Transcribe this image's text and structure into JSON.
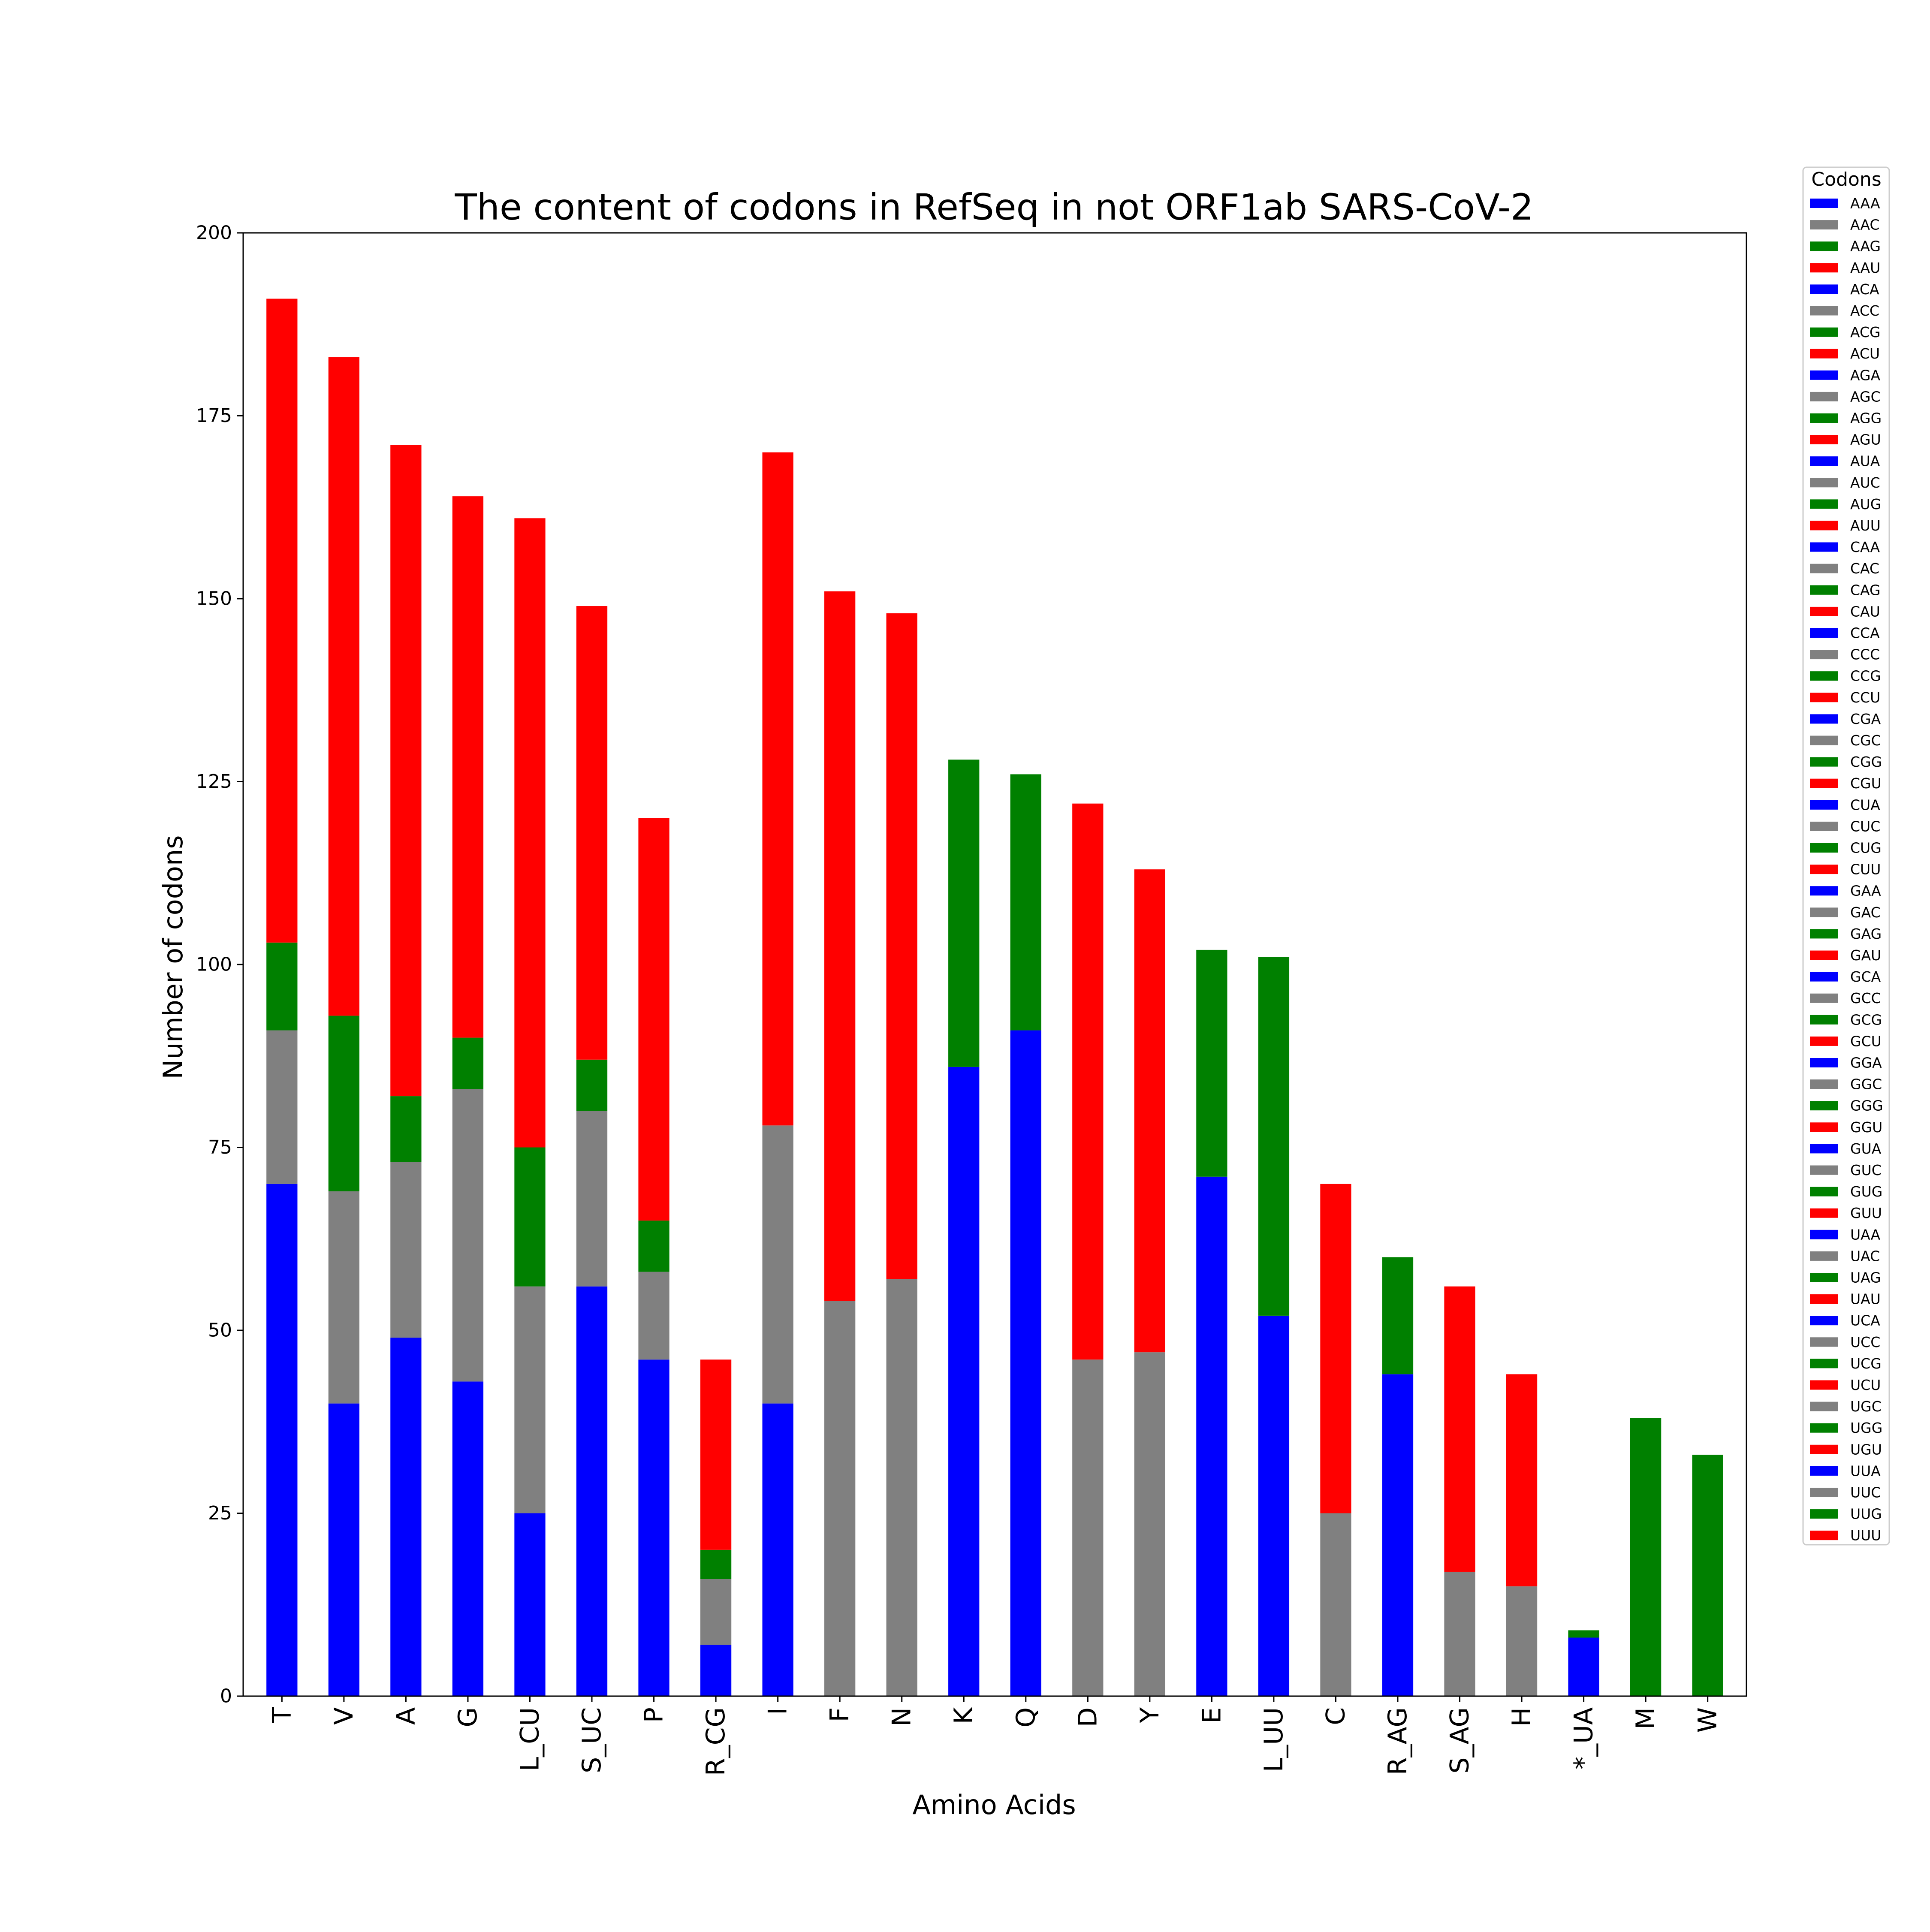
{
  "chart_data": {
    "type": "bar",
    "stacked": true,
    "title": "The content of codons in RefSeq in not ORF1ab SARS-CoV-2",
    "xlabel": "Amino Acids",
    "ylabel": "Number of codons",
    "ylim": [
      0,
      200
    ],
    "yticks": [
      0,
      25,
      50,
      75,
      100,
      125,
      150,
      175,
      200
    ],
    "grid": false,
    "legend_position": "outside-right",
    "legend_title": "Codons",
    "colors": {
      "blue": "#0000ff",
      "gray": "#808080",
      "green": "#008000",
      "red": "#ff0000"
    },
    "categories": [
      "T",
      "V",
      "A",
      "G",
      "L_CU",
      "S_UC",
      "P",
      "R_CG",
      "I",
      "F",
      "N",
      "K",
      "Q",
      "D",
      "Y",
      "E",
      "L_UU",
      "C",
      "R_AG",
      "S_AG",
      "H",
      "*_UA",
      "M",
      "W"
    ],
    "stacks": [
      [
        70,
        21,
        12,
        88
      ],
      [
        40,
        29,
        24,
        90
      ],
      [
        49,
        24,
        9,
        89
      ],
      [
        43,
        40,
        7,
        74
      ],
      [
        25,
        31,
        19,
        86
      ],
      [
        56,
        24,
        7,
        62
      ],
      [
        46,
        12,
        7,
        55
      ],
      [
        7,
        9,
        4,
        26
      ],
      [
        40,
        38,
        0,
        92
      ],
      [
        0,
        54,
        0,
        97
      ],
      [
        0,
        57,
        0,
        91
      ],
      [
        86,
        0,
        42,
        0
      ],
      [
        91,
        0,
        35,
        0
      ],
      [
        0,
        46,
        0,
        76
      ],
      [
        0,
        47,
        0,
        66
      ],
      [
        71,
        0,
        31,
        0
      ],
      [
        52,
        0,
        49,
        0
      ],
      [
        0,
        25,
        0,
        45
      ],
      [
        44,
        0,
        16,
        0
      ],
      [
        0,
        17,
        0,
        39
      ],
      [
        0,
        15,
        0,
        29
      ],
      [
        8,
        0,
        1,
        0
      ],
      [
        0,
        0,
        38,
        0
      ],
      [
        0,
        0,
        33,
        0
      ]
    ],
    "legend": [
      "AAA",
      "AAC",
      "AAG",
      "AAU",
      "ACA",
      "ACC",
      "ACG",
      "ACU",
      "AGA",
      "AGC",
      "AGG",
      "AGU",
      "AUA",
      "AUC",
      "AUG",
      "AUU",
      "CAA",
      "CAC",
      "CAG",
      "CAU",
      "CCA",
      "CCC",
      "CCG",
      "CCU",
      "CGA",
      "CGC",
      "CGG",
      "CGU",
      "CUA",
      "CUC",
      "CUG",
      "CUU",
      "GAA",
      "GAC",
      "GAG",
      "GAU",
      "GCA",
      "GCC",
      "GCG",
      "GCU",
      "GGA",
      "GGC",
      "GGG",
      "GGU",
      "GUA",
      "GUC",
      "GUG",
      "GUU",
      "UAA",
      "UAC",
      "UAG",
      "UAU",
      "UCA",
      "UCC",
      "UCG",
      "UCU",
      "UGC",
      "UGG",
      "UGU",
      "UUA",
      "UUC",
      "UUG",
      "UUU"
    ],
    "legend_colors": [
      "#0000ff",
      "#808080",
      "#008000",
      "#ff0000",
      "#0000ff",
      "#808080",
      "#008000",
      "#ff0000",
      "#0000ff",
      "#808080",
      "#008000",
      "#ff0000",
      "#0000ff",
      "#808080",
      "#008000",
      "#ff0000",
      "#0000ff",
      "#808080",
      "#008000",
      "#ff0000",
      "#0000ff",
      "#808080",
      "#008000",
      "#ff0000",
      "#0000ff",
      "#808080",
      "#008000",
      "#ff0000",
      "#0000ff",
      "#808080",
      "#008000",
      "#ff0000",
      "#0000ff",
      "#808080",
      "#008000",
      "#ff0000",
      "#0000ff",
      "#808080",
      "#008000",
      "#ff0000",
      "#0000ff",
      "#808080",
      "#008000",
      "#ff0000",
      "#0000ff",
      "#808080",
      "#008000",
      "#ff0000",
      "#0000ff",
      "#808080",
      "#008000",
      "#ff0000",
      "#0000ff",
      "#808080",
      "#008000",
      "#ff0000",
      "#808080",
      "#008000",
      "#ff0000",
      "#0000ff",
      "#808080",
      "#008000",
      "#ff0000"
    ]
  }
}
